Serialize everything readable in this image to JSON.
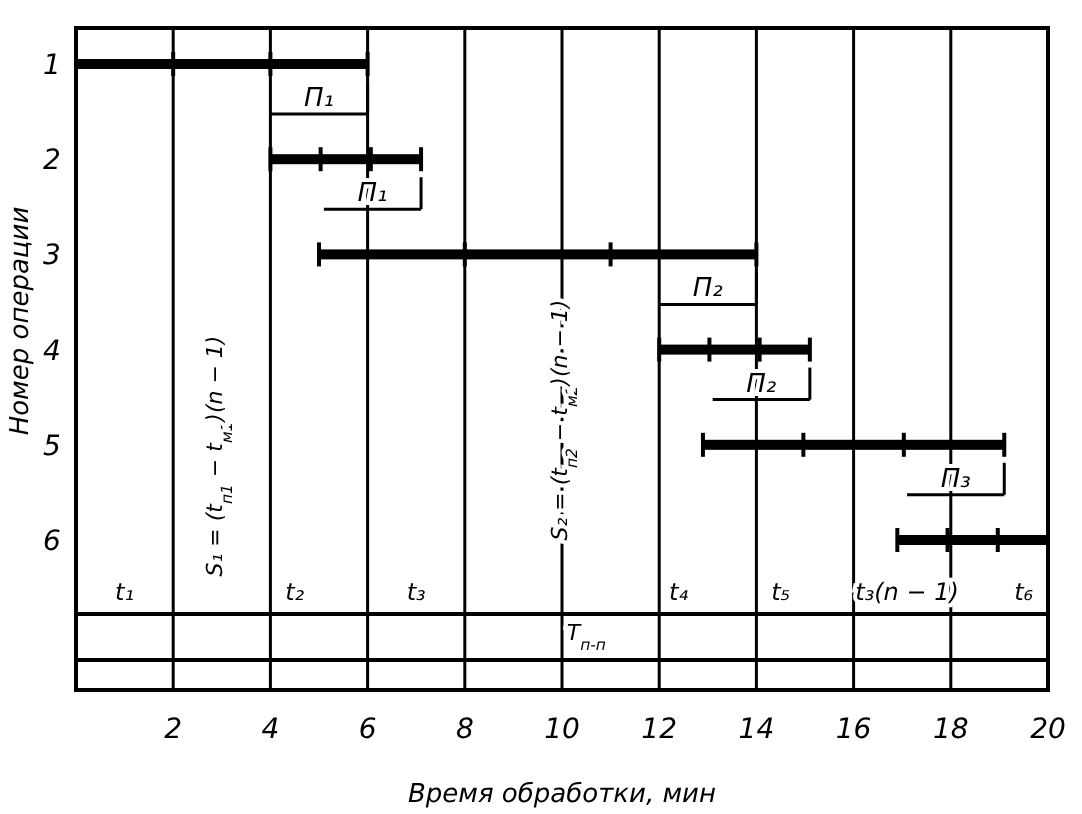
{
  "chart_data": {
    "type": "bar",
    "orientation": "horizontal",
    "xlabel": "Время обработки, мин",
    "ylabel": "Номер операции",
    "categories": [
      "1",
      "2",
      "3",
      "4",
      "5",
      "6"
    ],
    "series": [
      {
        "color": "#000000",
        "base": [
          0,
          4,
          5,
          12,
          12.9,
          16.9
        ],
        "values": [
          6,
          3.1,
          9,
          3.1,
          6.2,
          3.1
        ]
      }
    ],
    "xlim": [
      0,
      20
    ],
    "xticks": [
      {
        "value": 0,
        "label": null
      },
      2,
      4,
      6,
      8,
      10,
      12,
      14,
      16,
      18,
      20
    ],
    "grid": "x",
    "annotations": [
      "S₁ = (t$_{п1}$ − t$_{м1}$)(n − 1)",
      "S₂ = (t$_{п2}$ − t$_{м2}$)(n − 1)",
      "П₁",
      "П₁",
      "П₂",
      "П₂",
      "П₃",
      "t₁",
      "t₂",
      "t₃",
      "t₄",
      "t₅",
      "t₃(n − 1)",
      "t₆",
      "T$_{п-п}$"
    ]
  }
}
